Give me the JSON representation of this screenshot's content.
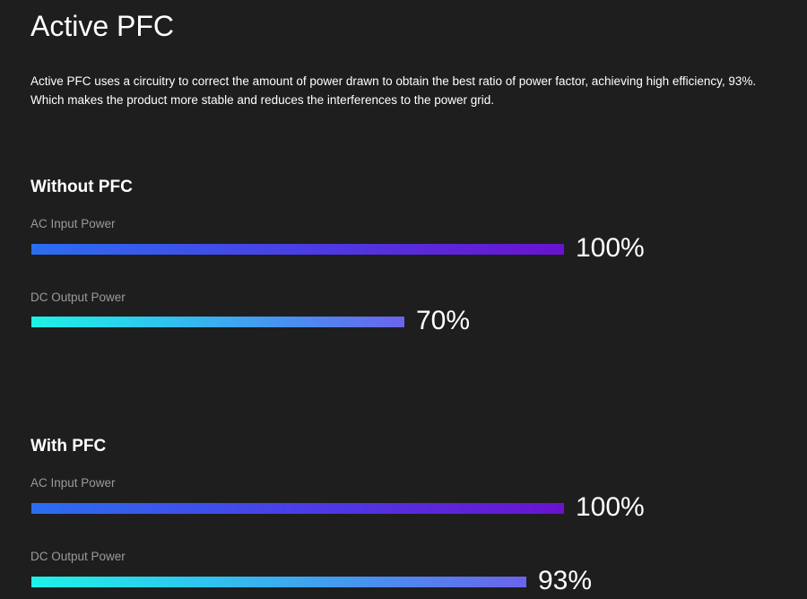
{
  "title": "Active PFC",
  "description_lines": [
    "Active PFC uses a circuitry to correct the amount of power drawn to obtain the best ratio of power factor, achieving high efficiency, 93%.",
    "Which makes the product more stable and reduces the interferences to the power grid."
  ],
  "chart_data": [
    {
      "type": "bar",
      "orientation": "horizontal",
      "title": "Without PFC",
      "categories": [
        "AC Input Power",
        "DC Output Power"
      ],
      "values": [
        100,
        70
      ],
      "value_labels": [
        "100%",
        "70%"
      ],
      "xlim": [
        0,
        100
      ],
      "colors": {
        "AC Input Power": [
          "#2b6ef0",
          "#6a12cf"
        ],
        "DC Output Power": [
          "#1ef2e6",
          "#6a64ec"
        ]
      }
    },
    {
      "type": "bar",
      "orientation": "horizontal",
      "title": "With PFC",
      "categories": [
        "AC Input Power",
        "DC Output Power"
      ],
      "values": [
        100,
        93
      ],
      "value_labels": [
        "100%",
        "93%"
      ],
      "xlim": [
        0,
        100
      ],
      "colors": {
        "AC Input Power": [
          "#2b6ef0",
          "#6a12cf"
        ],
        "DC Output Power": [
          "#1ef2e6",
          "#6a64ec"
        ]
      }
    }
  ]
}
